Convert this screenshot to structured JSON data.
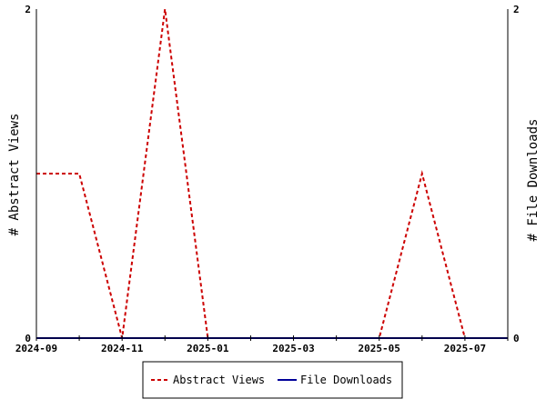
{
  "chart_data": {
    "type": "line",
    "x": [
      "2024-09",
      "2024-10",
      "2024-11",
      "2024-12",
      "2025-01",
      "2025-02",
      "2025-03",
      "2025-04",
      "2025-05",
      "2025-06",
      "2025-07",
      "2025-08"
    ],
    "x_ticks": [
      "2024-09",
      "2024-11",
      "2025-01",
      "2025-03",
      "2025-05",
      "2025-07"
    ],
    "series": [
      {
        "name": "Abstract Views",
        "axis": "left",
        "values": [
          1,
          1,
          0,
          2,
          0,
          0,
          0,
          0,
          0,
          1,
          0,
          0
        ],
        "color": "#cc0000",
        "style": "dashed"
      },
      {
        "name": "File Downloads",
        "axis": "right",
        "values": [
          0,
          0,
          0,
          0,
          0,
          0,
          0,
          0,
          0,
          0,
          0,
          0
        ],
        "color": "#000099",
        "style": "solid"
      }
    ],
    "ylabel_left": "# Abstract Views",
    "ylabel_right": "# File Downloads",
    "ylim_left": [
      0,
      2
    ],
    "ylim_right": [
      0,
      2
    ],
    "y_ticks_left": [
      "0",
      "2"
    ],
    "y_ticks_right": [
      "0",
      "2"
    ],
    "legend_position": "bottom-center",
    "grid": false
  }
}
